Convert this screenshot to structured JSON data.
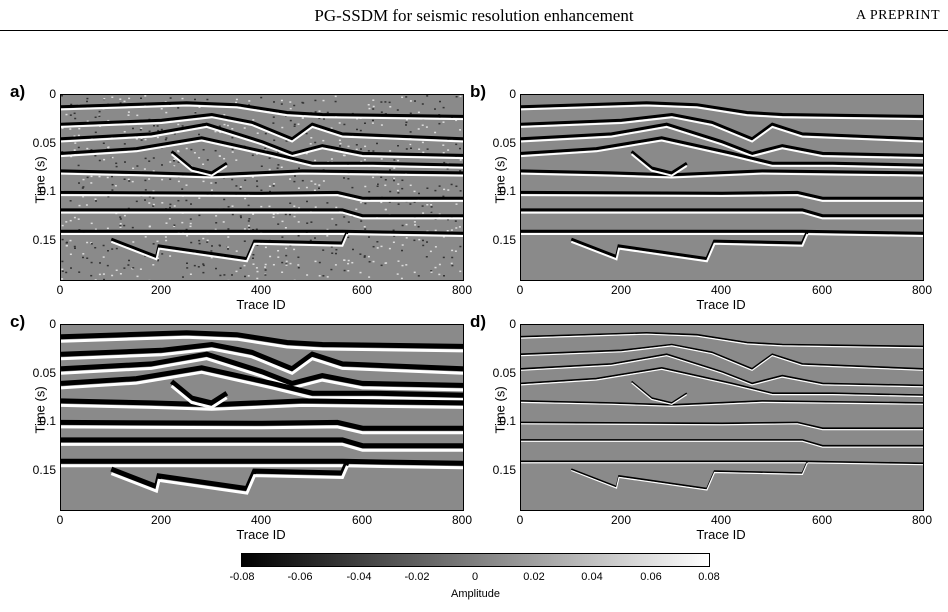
{
  "header": {
    "title": "PG-SSDM for seismic resolution enhancement",
    "right": "A PREPRINT"
  },
  "axes": {
    "ylabel": "Time (s)",
    "xlabel": "Trace ID",
    "yticks": [
      "0",
      "0.05",
      "0.1",
      "0.15"
    ],
    "xticks": [
      "0",
      "200",
      "400",
      "600",
      "800"
    ],
    "xlim": [
      0,
      800
    ],
    "ylim": [
      0,
      0.19
    ]
  },
  "panels": [
    {
      "letter": "a)",
      "style": "noisy"
    },
    {
      "letter": "b)",
      "style": "sharp"
    },
    {
      "letter": "c)",
      "style": "smooth"
    },
    {
      "letter": "d)",
      "style": "thin"
    }
  ],
  "colorbar": {
    "ticks": [
      "-0.08",
      "-0.06",
      "-0.04",
      "-0.02",
      "0",
      "0.02",
      "0.04",
      "0.06",
      "0.08"
    ],
    "label": "Amplitude",
    "colormap": [
      "#000000",
      "#ffffff"
    ]
  },
  "colors": {
    "background": "#8a8a8a",
    "positive": "#ffffff",
    "negative": "#000000"
  }
}
